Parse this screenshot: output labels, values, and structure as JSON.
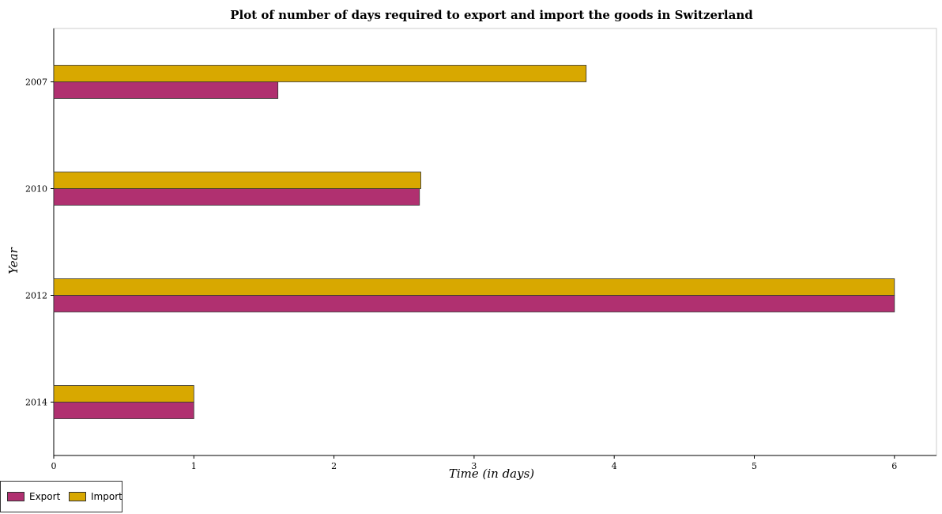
{
  "chart_data": {
    "type": "bar",
    "orientation": "horizontal",
    "title": "Plot of number of days required to export and import the goods in Switzerland",
    "xlabel": "Time (in days)",
    "ylabel": "Year",
    "categories": [
      "2007",
      "2010",
      "2012",
      "2014"
    ],
    "series": [
      {
        "name": "Export",
        "values": [
          1.6,
          2.61,
          6.0,
          1.0
        ],
        "color": "#b03070"
      },
      {
        "name": "Import",
        "values": [
          3.8,
          2.62,
          6.0,
          1.0
        ],
        "color": "#d8a800"
      }
    ],
    "xlim": [
      0,
      6.3
    ],
    "xticks": [
      "0",
      "1",
      "2",
      "3",
      "4",
      "5",
      "6"
    ],
    "legend_position": "bottom-left",
    "grid": false
  }
}
